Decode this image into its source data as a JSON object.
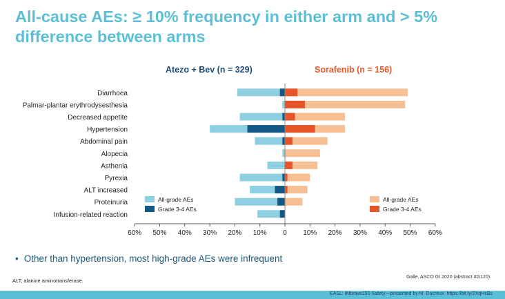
{
  "title": "All-cause AEs: ≥ 10% frequency in either arm and > 5% difference between arms",
  "bullet": "Other than hypertension, most high-grade AEs were infrequent",
  "footnote": "ALT, alanine aminotransferase.",
  "citation": "Galle, ASCO GI 2020 (abstract #G120).",
  "bottom_bar_text": "EASL: IMbrave150 Safety—presented by M. Ducreux. https://bit.ly/2XqHxBs",
  "colors": {
    "title": "#5bbfd6",
    "atezo_label": "#1f4e79",
    "sorafenib_label": "#e8572a",
    "atezo_all": "#8fcfe2",
    "atezo_g34": "#135784",
    "sora_all": "#f7bf94",
    "sora_g34": "#e8542a"
  },
  "chart_data": {
    "type": "bar",
    "orientation": "horizontal-diverging",
    "categories": [
      "Diarrhoea",
      "Palmar-plantar erythrodysesthesia",
      "Decreased appetite",
      "Hypertension",
      "Abdominal pain",
      "Alopecia",
      "Asthenia",
      "Pyrexia",
      "ALT increased",
      "Proteinuria",
      "Infusion-related reaction"
    ],
    "arms": {
      "left": "Atezo + Bev (n = 329)",
      "right": "Sorafenib (n = 156)"
    },
    "series": [
      {
        "name": "All-grade AEs",
        "arm": "Atezo + Bev",
        "values": [
          19,
          1,
          18,
          30,
          12,
          1,
          7,
          18,
          14,
          20,
          11
        ]
      },
      {
        "name": "Grade 3-4 AEs",
        "arm": "Atezo + Bev",
        "values": [
          2,
          0,
          1,
          15,
          1,
          0,
          0,
          1,
          4,
          3,
          2
        ]
      },
      {
        "name": "All-grade AEs",
        "arm": "Sorafenib",
        "values": [
          49,
          48,
          24,
          24,
          17,
          14,
          13,
          10,
          9,
          7,
          0
        ]
      },
      {
        "name": "Grade 3-4 AEs",
        "arm": "Sorafenib",
        "values": [
          5,
          8,
          4,
          12,
          3,
          0,
          3,
          1,
          1,
          0,
          0
        ]
      }
    ],
    "xticks": [
      "60%",
      "50%",
      "40%",
      "30%",
      "20%",
      "10%",
      "0",
      "10%",
      "20%",
      "30%",
      "40%",
      "50%",
      "60%"
    ],
    "xlim": [
      -60,
      60
    ],
    "legend": {
      "left": [
        "All-grade AEs",
        "Grade 3-4 AEs"
      ],
      "right": [
        "All-grade AEs",
        "Grade 3-4 AEs"
      ]
    }
  }
}
